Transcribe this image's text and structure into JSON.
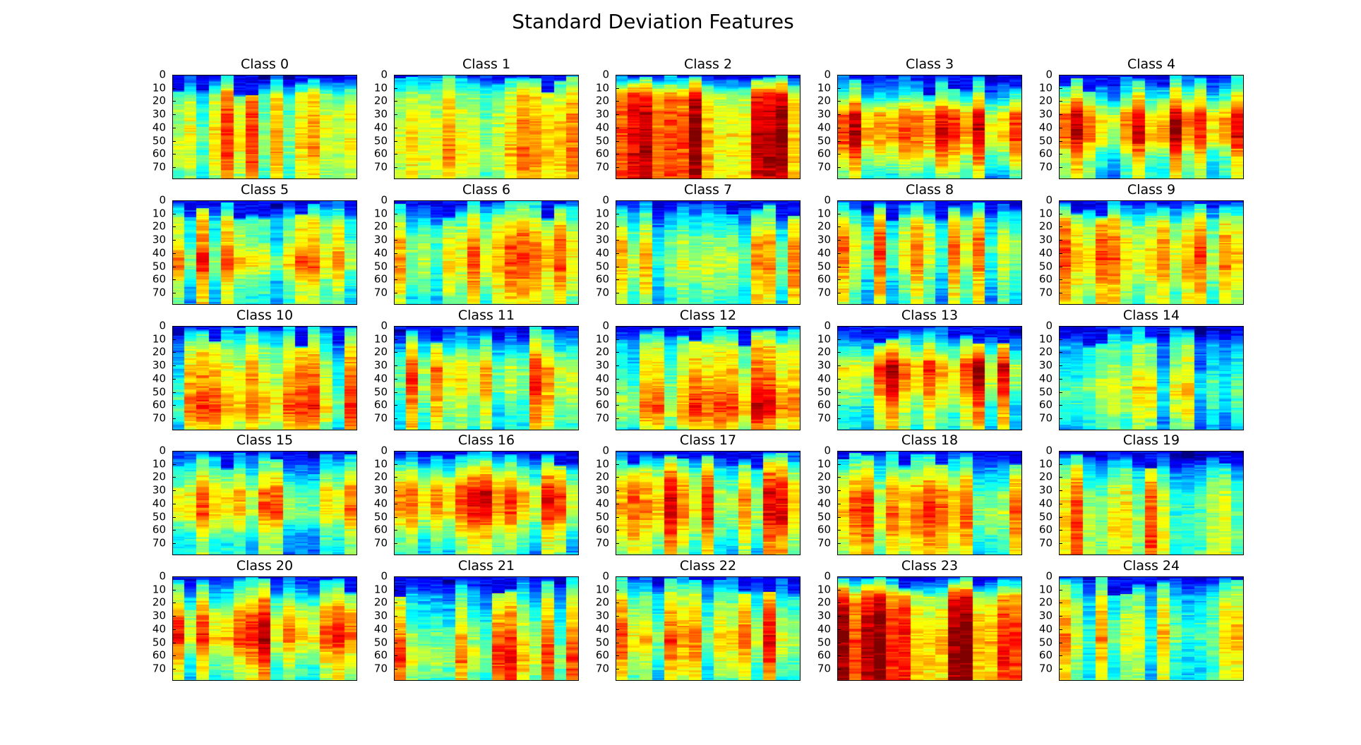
{
  "figure": {
    "title": "Standard Deviation Features"
  },
  "chart_data": {
    "type": "heatmap",
    "colormap": "jet",
    "rows": 80,
    "columns": 15,
    "ytick_labels": [
      "0",
      "10",
      "20",
      "30",
      "40",
      "50",
      "60",
      "70"
    ],
    "ylim": [
      79,
      0
    ],
    "grid": false,
    "panels": [
      {
        "title": "Class 0",
        "profile": [
          0.15,
          0.55,
          0.62,
          0.65,
          0.62,
          0.55
        ],
        "top_dark": 0.3
      },
      {
        "title": "Class 1",
        "profile": [
          0.3,
          0.55,
          0.6,
          0.62,
          0.65,
          0.55
        ],
        "top_dark": 0.2
      },
      {
        "title": "Class 2",
        "profile": [
          0.25,
          0.75,
          0.8,
          0.82,
          0.82,
          0.8
        ],
        "top_dark": 0.25
      },
      {
        "title": "Class 3",
        "profile": [
          0.2,
          0.45,
          0.8,
          0.82,
          0.65,
          0.45
        ],
        "top_dark": 0.5
      },
      {
        "title": "Class 4",
        "profile": [
          0.2,
          0.45,
          0.75,
          0.75,
          0.5,
          0.45
        ],
        "top_dark": 0.3
      },
      {
        "title": "Class 5",
        "profile": [
          0.15,
          0.5,
          0.55,
          0.7,
          0.5,
          0.45
        ],
        "top_dark": 0.4
      },
      {
        "title": "Class 6",
        "profile": [
          0.2,
          0.45,
          0.6,
          0.62,
          0.55,
          0.45
        ],
        "top_dark": 0.2
      },
      {
        "title": "Class 7",
        "profile": [
          0.2,
          0.4,
          0.55,
          0.6,
          0.55,
          0.45
        ],
        "top_dark": 0.2
      },
      {
        "title": "Class 8",
        "profile": [
          0.15,
          0.5,
          0.62,
          0.6,
          0.5,
          0.45
        ],
        "top_dark": 0.3
      },
      {
        "title": "Class 9",
        "profile": [
          0.15,
          0.5,
          0.62,
          0.65,
          0.55,
          0.5
        ],
        "top_dark": 0.4
      },
      {
        "title": "Class 10",
        "profile": [
          0.2,
          0.45,
          0.55,
          0.6,
          0.68,
          0.5
        ],
        "top_dark": 0.3
      },
      {
        "title": "Class 11",
        "profile": [
          0.2,
          0.45,
          0.65,
          0.65,
          0.55,
          0.5
        ],
        "top_dark": 0.2
      },
      {
        "title": "Class 12",
        "profile": [
          0.2,
          0.5,
          0.55,
          0.65,
          0.72,
          0.55
        ],
        "top_dark": 0.2
      },
      {
        "title": "Class 13",
        "profile": [
          0.2,
          0.5,
          0.78,
          0.7,
          0.55,
          0.5
        ],
        "top_dark": 0.5
      },
      {
        "title": "Class 14",
        "profile": [
          0.15,
          0.4,
          0.45,
          0.55,
          0.48,
          0.4
        ],
        "top_dark": 0.5
      },
      {
        "title": "Class 15",
        "profile": [
          0.2,
          0.45,
          0.65,
          0.68,
          0.45,
          0.4
        ],
        "top_dark": 0.3
      },
      {
        "title": "Class 16",
        "profile": [
          0.2,
          0.55,
          0.78,
          0.75,
          0.55,
          0.45
        ],
        "top_dark": 0.3
      },
      {
        "title": "Class 17",
        "profile": [
          0.2,
          0.55,
          0.7,
          0.72,
          0.6,
          0.5
        ],
        "top_dark": 0.3
      },
      {
        "title": "Class 18",
        "profile": [
          0.2,
          0.45,
          0.62,
          0.68,
          0.6,
          0.5
        ],
        "top_dark": 0.4
      },
      {
        "title": "Class 19",
        "profile": [
          0.15,
          0.45,
          0.58,
          0.62,
          0.62,
          0.6
        ],
        "top_dark": 0.4
      },
      {
        "title": "Class 20",
        "profile": [
          0.25,
          0.5,
          0.72,
          0.78,
          0.6,
          0.5
        ],
        "top_dark": 0.3
      },
      {
        "title": "Class 21",
        "profile": [
          0.2,
          0.45,
          0.55,
          0.65,
          0.72,
          0.6
        ],
        "top_dark": 0.4
      },
      {
        "title": "Class 22",
        "profile": [
          0.25,
          0.5,
          0.6,
          0.7,
          0.6,
          0.5
        ],
        "top_dark": 0.2
      },
      {
        "title": "Class 23",
        "profile": [
          0.2,
          0.7,
          0.78,
          0.82,
          0.82,
          0.78
        ],
        "top_dark": 0.3
      },
      {
        "title": "Class 24",
        "profile": [
          0.2,
          0.42,
          0.5,
          0.55,
          0.48,
          0.45
        ],
        "top_dark": 0.3
      }
    ]
  }
}
